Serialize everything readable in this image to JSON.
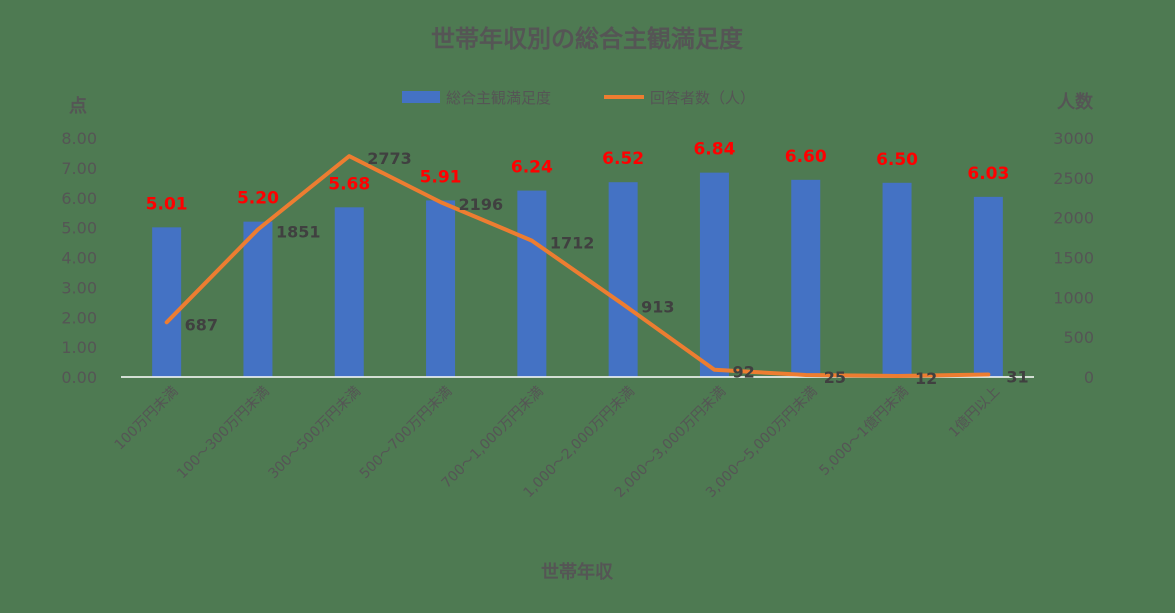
{
  "chart_data": {
    "type": "bar",
    "title": "世帯年収別の総合主観満足度",
    "xlabel": "世帯年収",
    "ylabel_left": "点",
    "ylabel_right": "人数",
    "categories": [
      "100万円未満",
      "100～300万円未満",
      "300～500万円未満",
      "500～700万円未満",
      "700～1,000万円未満",
      "1,000～2,000万円未満",
      "2,000～3,000万円未満",
      "3,000～5,000万円未満",
      "5,000～1億円未満",
      "1億円以上"
    ],
    "series": [
      {
        "name": "総合主観満足度",
        "type": "bar",
        "axis": "left",
        "color": "#4472c4",
        "values": [
          5.01,
          5.2,
          5.68,
          5.91,
          6.24,
          6.52,
          6.84,
          6.6,
          6.5,
          6.03
        ],
        "labels": [
          "5.01",
          "5.20",
          "5.68",
          "5.91",
          "6.24",
          "6.52",
          "6.84",
          "6.60",
          "6.50",
          "6.03"
        ],
        "label_color": "#ff0000"
      },
      {
        "name": "回答者数（人）",
        "type": "line",
        "axis": "right",
        "color": "#ed7d31",
        "values": [
          687,
          1851,
          2773,
          2196,
          1712,
          913,
          92,
          25,
          12,
          31
        ],
        "labels": [
          "687",
          "1851",
          "2773",
          "2196",
          "1712",
          "913",
          "92",
          "25",
          "12",
          "31"
        ],
        "label_color": "#404040"
      }
    ],
    "ylim_left": [
      0,
      8
    ],
    "ylim_right": [
      0,
      3000
    ],
    "yticks_left": [
      "0.00",
      "1.00",
      "2.00",
      "3.00",
      "4.00",
      "5.00",
      "6.00",
      "7.00",
      "8.00"
    ],
    "yticks_right": [
      "0",
      "500",
      "1000",
      "1500",
      "2000",
      "2500",
      "3000"
    ],
    "grid": false,
    "legend_position": "top"
  }
}
